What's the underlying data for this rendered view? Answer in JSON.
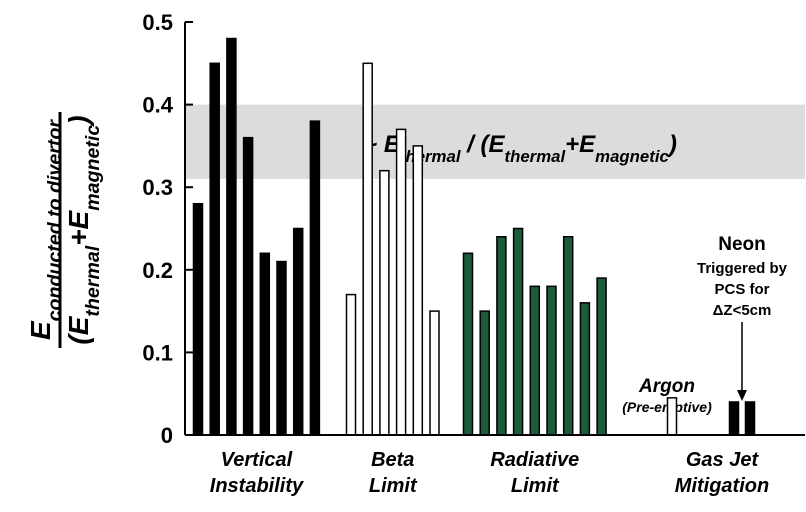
{
  "chart_data": {
    "type": "bar",
    "ylim": [
      0,
      0.5
    ],
    "yticks": [
      0,
      0.1,
      0.2,
      0.3,
      0.4,
      0.5
    ],
    "y_label_numerator": [
      "E",
      "conducted to divertor"
    ],
    "y_label_denominator": [
      "(E",
      "thermal",
      "+E",
      "magnetic",
      ")"
    ],
    "band": [
      0.31,
      0.4
    ],
    "band_color": "#dcdcdc",
    "band_label": [
      "~ E",
      "thermal",
      " / (E",
      "thermal",
      "+E",
      "magnetic",
      ")"
    ],
    "groups": [
      {
        "label": [
          "Vertical",
          "Instability"
        ],
        "colors": [
          "#000000",
          "#000000",
          "#000000",
          "#000000",
          "#000000",
          "#000000",
          "#000000",
          "#000000"
        ],
        "values": [
          0.28,
          0.45,
          0.48,
          0.36,
          0.22,
          0.21,
          0.25,
          0.38
        ]
      },
      {
        "label": [
          "Beta",
          "Limit"
        ],
        "colors": [
          "#ffffff",
          "#ffffff",
          "#ffffff",
          "#ffffff",
          "#ffffff",
          "#ffffff"
        ],
        "values": [
          0.17,
          0.45,
          0.32,
          0.37,
          0.35,
          0.15
        ]
      },
      {
        "label": [
          "Radiative",
          "Limit"
        ],
        "colors": [
          "#1d5c38",
          "#1d5c38",
          "#1d5c38",
          "#1d5c38",
          "#1d5c38",
          "#1d5c38",
          "#1d5c38",
          "#1d5c38",
          "#1d5c38"
        ],
        "values": [
          0.22,
          0.15,
          0.24,
          0.25,
          0.18,
          0.18,
          0.24,
          0.16,
          0.19
        ]
      },
      {
        "label": [
          "Gas Jet",
          "Mitigation"
        ],
        "colors": [
          "#ffffff",
          "#000000",
          "#000000"
        ],
        "values": [
          0.045,
          0.04,
          0.04
        ]
      }
    ],
    "annotations": {
      "argon": "Argon",
      "argon_note": "(Pre-emptive)",
      "neon": "Neon",
      "neon_note": [
        "Triggered by",
        "PCS for",
        "ΔZ<5cm"
      ]
    }
  }
}
